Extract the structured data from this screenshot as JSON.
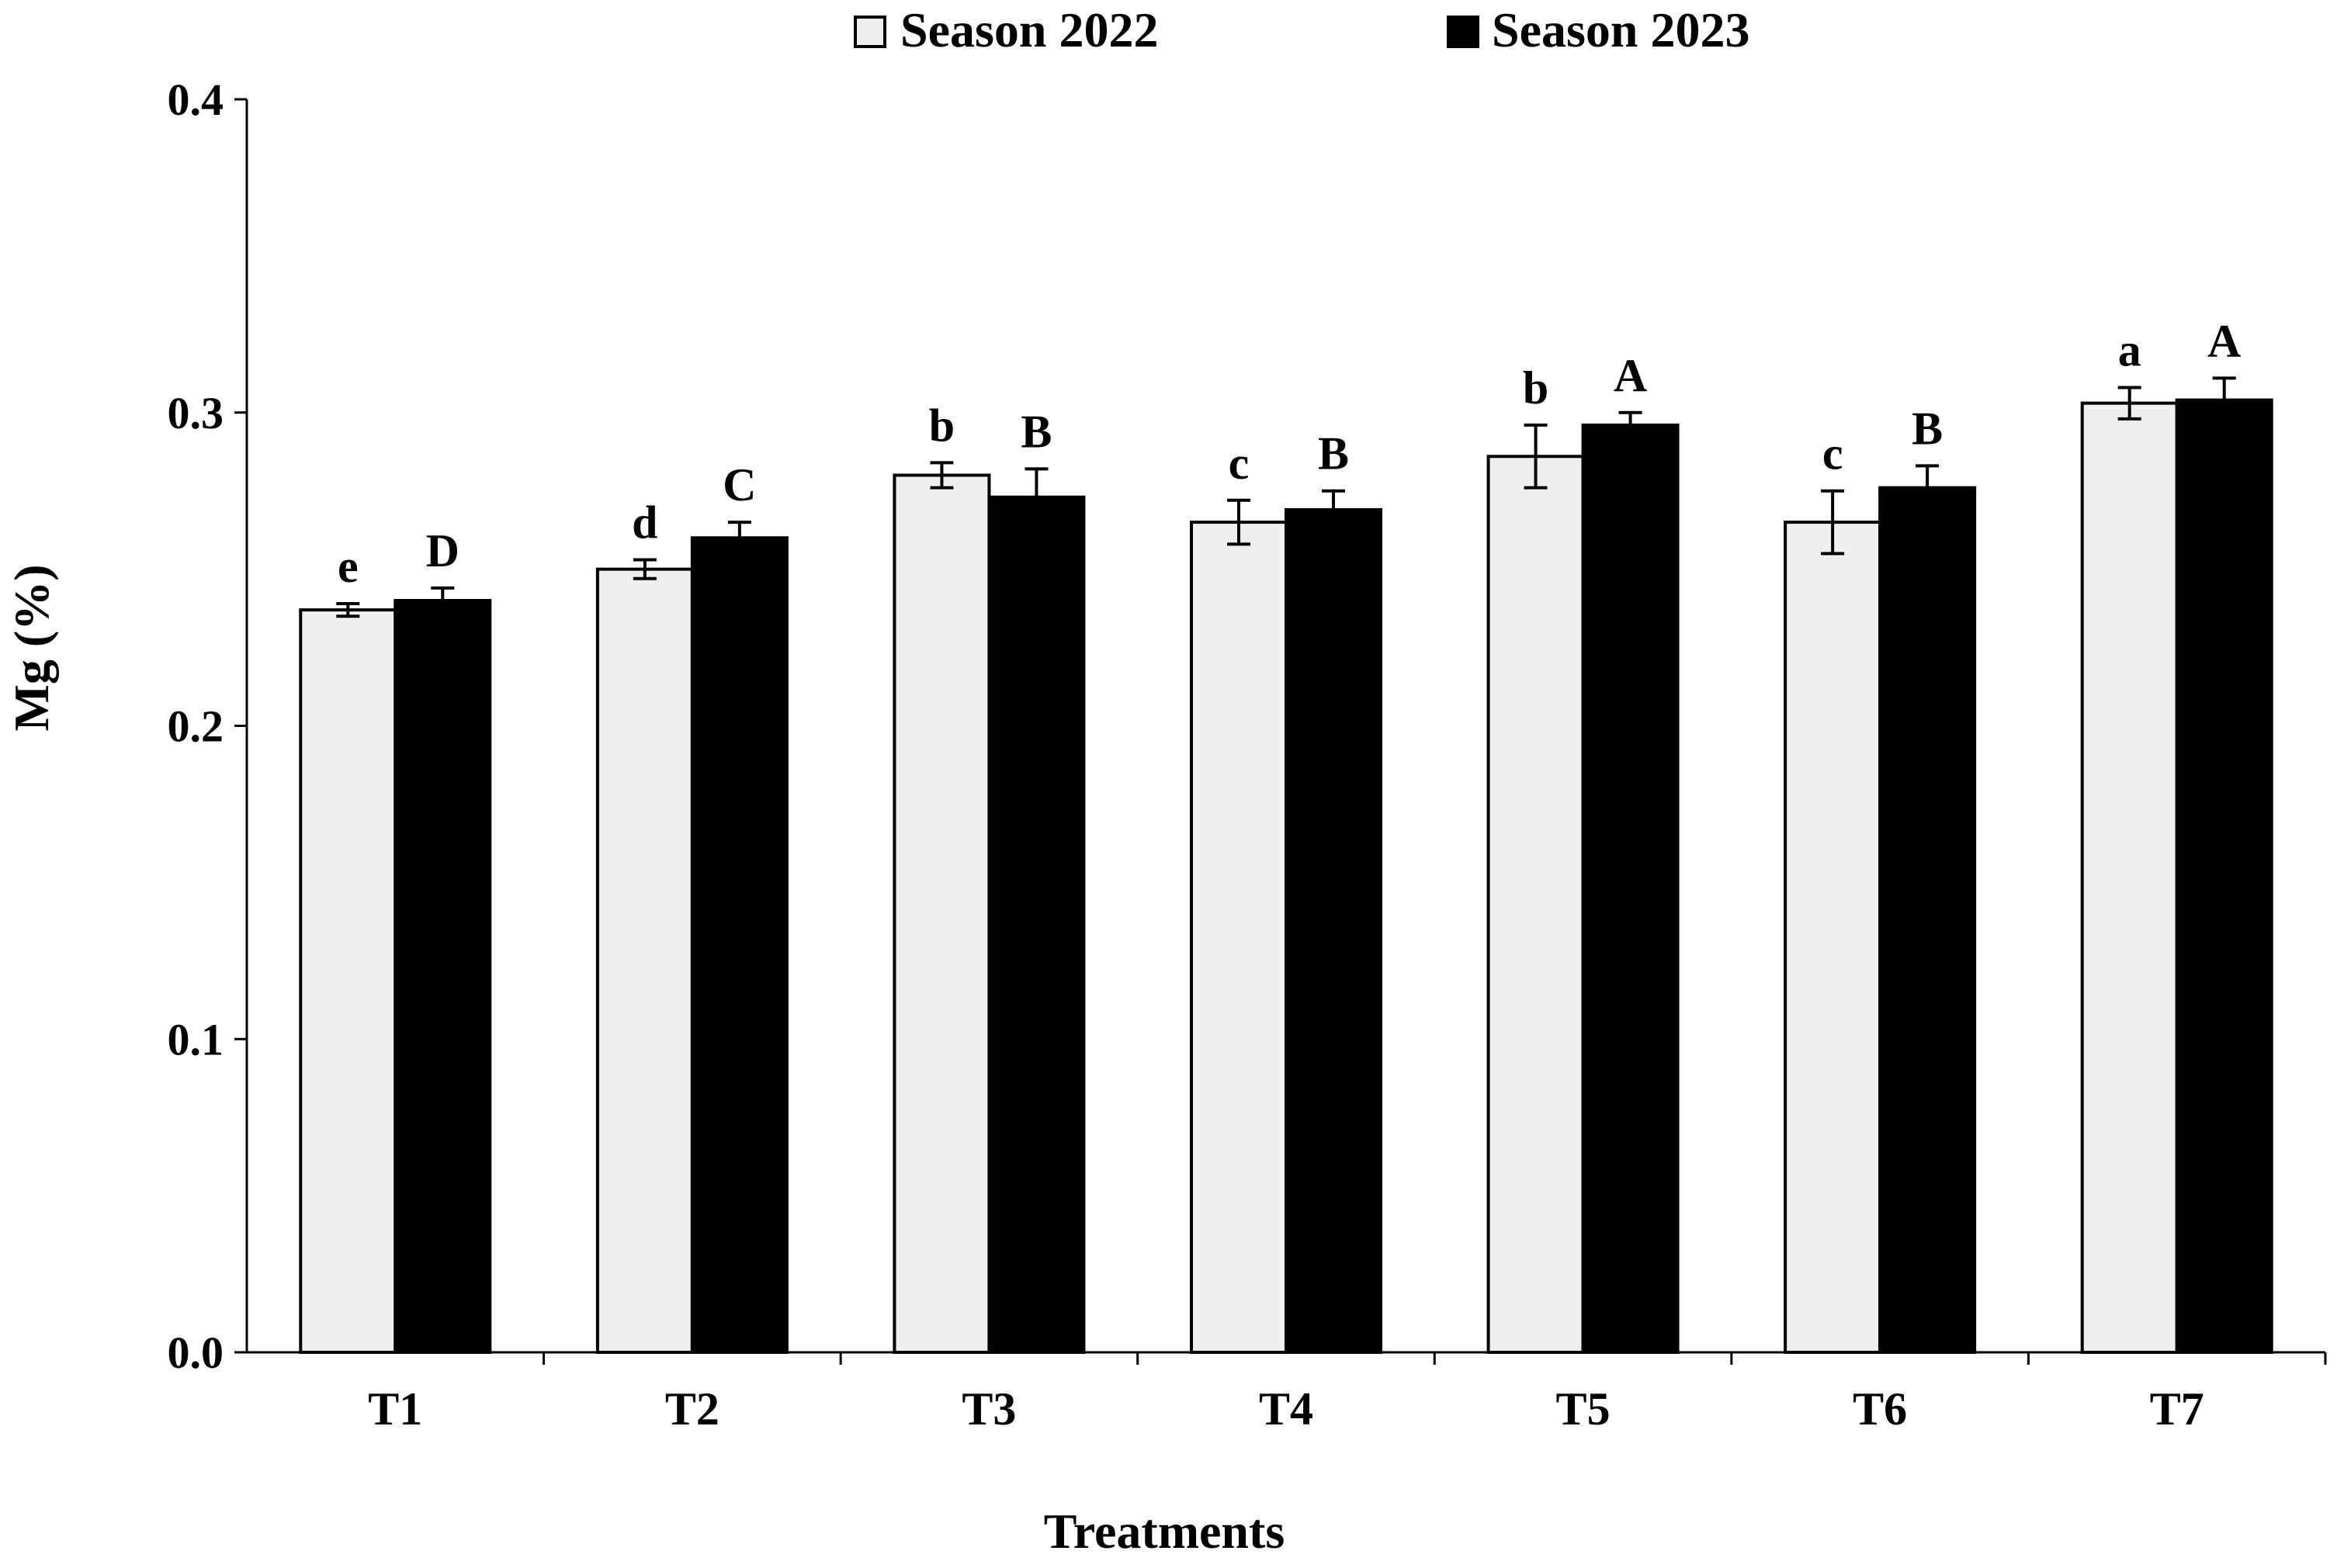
{
  "chart_data": {
    "type": "bar",
    "title": "",
    "xlabel": "Treatments",
    "ylabel": "Mg (%)",
    "ylim": [
      0.0,
      0.4
    ],
    "yticks": [
      "0.0",
      "0.1",
      "0.2",
      "0.3",
      "0.4"
    ],
    "yticks_values": [
      0.0,
      0.1,
      0.2,
      0.3,
      0.4
    ],
    "grid": false,
    "legend_position": "top-center",
    "categories": [
      "T1",
      "T2",
      "T3",
      "T4",
      "T5",
      "T6",
      "T7"
    ],
    "series": [
      {
        "name": "Season 2022",
        "color": "#efefef",
        "values": [
          0.237,
          0.25,
          0.28,
          0.265,
          0.286,
          0.265,
          0.303
        ],
        "errors": [
          0.002,
          0.003,
          0.004,
          0.007,
          0.01,
          0.01,
          0.005
        ],
        "letters": [
          "e",
          "d",
          "b",
          "c",
          "b",
          "c",
          "a"
        ]
      },
      {
        "name": "Season 2023",
        "color": "#000000",
        "values": [
          0.24,
          0.26,
          0.273,
          0.269,
          0.296,
          0.276,
          0.304
        ],
        "errors": [
          0.004,
          0.005,
          0.009,
          0.006,
          0.004,
          0.007,
          0.007
        ],
        "letters": [
          "D",
          "C",
          "B",
          "B",
          "A",
          "B",
          "A"
        ]
      }
    ]
  }
}
